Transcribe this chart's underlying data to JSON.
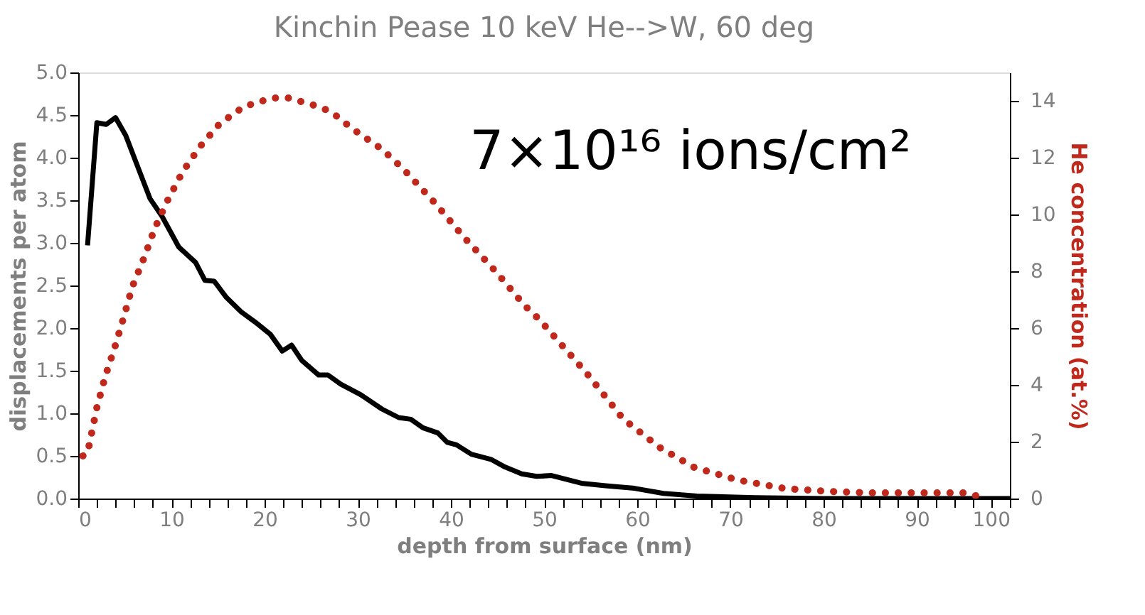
{
  "chart_data": {
    "type": "line",
    "title": "Kinchin Pease 10 keV He-->W, 60 deg",
    "xlabel": "depth from surface (nm)",
    "ylabel": "displacements per atom",
    "y2label": "He concentration (at.%)",
    "annotations": [
      "7×10¹⁶ ions/cm²"
    ],
    "xlim": [
      0,
      100
    ],
    "xticks": [
      0,
      {
        "value": 2,
        "label": null
      },
      {
        "value": 4,
        "label": null
      },
      {
        "value": 6,
        "label": null
      },
      {
        "value": 8,
        "label": null
      },
      10,
      {
        "value": 12,
        "label": null
      },
      {
        "value": 14,
        "label": null
      },
      {
        "value": 16,
        "label": null
      },
      {
        "value": 18,
        "label": null
      },
      20,
      {
        "value": 22,
        "label": null
      },
      {
        "value": 24,
        "label": null
      },
      {
        "value": 26,
        "label": null
      },
      {
        "value": 28,
        "label": null
      },
      30,
      {
        "value": 32,
        "label": null
      },
      {
        "value": 34,
        "label": null
      },
      {
        "value": 36,
        "label": null
      },
      {
        "value": 38,
        "label": null
      },
      40,
      {
        "value": 42,
        "label": null
      },
      {
        "value": 44,
        "label": null
      },
      {
        "value": 46,
        "label": null
      },
      {
        "value": 48,
        "label": null
      },
      50,
      {
        "value": 52,
        "label": null
      },
      {
        "value": 54,
        "label": null
      },
      {
        "value": 56,
        "label": null
      },
      {
        "value": 58,
        "label": null
      },
      60,
      {
        "value": 62,
        "label": null
      },
      {
        "value": 64,
        "label": null
      },
      {
        "value": 66,
        "label": null
      },
      {
        "value": 68,
        "label": null
      },
      70,
      {
        "value": 72,
        "label": null
      },
      {
        "value": 74,
        "label": null
      },
      {
        "value": 76,
        "label": null
      },
      {
        "value": 78,
        "label": null
      },
      80,
      {
        "value": 82,
        "label": null
      },
      {
        "value": 84,
        "label": null
      },
      {
        "value": 86,
        "label": null
      },
      {
        "value": 88,
        "label": null
      },
      90,
      {
        "value": 92,
        "label": null
      },
      {
        "value": 94,
        "label": null
      },
      {
        "value": 96,
        "label": null
      },
      {
        "value": 98,
        "label": null
      },
      100
    ],
    "ylim": [
      0,
      5
    ],
    "yticks": [
      {
        "value": 0,
        "label": "0.0"
      },
      0.5,
      {
        "value": 1,
        "label": "1.0"
      },
      1.5,
      {
        "value": 2,
        "label": "2.0"
      },
      2.5,
      {
        "value": 3,
        "label": "3.0"
      },
      3.5,
      {
        "value": 4,
        "label": "4.0"
      },
      4.5,
      {
        "value": 5,
        "label": "5.0"
      }
    ],
    "y2lim": [
      0,
      15
    ],
    "y2ticks": [
      0,
      2,
      4,
      6,
      8,
      10,
      12,
      14
    ],
    "grid": false,
    "series": [
      {
        "color": "#000000",
        "line_style": "solid",
        "x": [
          1.0,
          2.0,
          3.0,
          4.0,
          5.1,
          6.4,
          7.7,
          9.0,
          10.8,
          12.6,
          13.6,
          14.6,
          15.9,
          17.5,
          19.0,
          20.6,
          21.9,
          22.9,
          24.0,
          25.8,
          26.8,
          28.2,
          30.3,
          32.6,
          34.4,
          35.7,
          37.0,
          38.6,
          39.6,
          40.6,
          42.2,
          44.3,
          45.8,
          47.6,
          49.2,
          50.8,
          54.0,
          56.6,
          59.7,
          62.8,
          66.4,
          72.6,
          80,
          90,
          100
        ],
        "values": [
          2.97,
          4.41,
          4.39,
          4.47,
          4.26,
          3.89,
          3.52,
          3.31,
          2.95,
          2.77,
          2.56,
          2.55,
          2.36,
          2.19,
          2.07,
          1.93,
          1.73,
          1.8,
          1.62,
          1.45,
          1.45,
          1.34,
          1.22,
          1.05,
          0.95,
          0.93,
          0.83,
          0.77,
          0.66,
          0.63,
          0.52,
          0.46,
          0.37,
          0.29,
          0.26,
          0.27,
          0.18,
          0.15,
          0.12,
          0.06,
          0.03,
          0.01,
          0,
          0,
          0
        ]
      },
      {
        "color": "#c0281c",
        "line_style": "dotted",
        "axis": "y2",
        "x": [
          0.5,
          1.0,
          2.0,
          2.9,
          3.9,
          4.9,
          5.8,
          7.1,
          8.2,
          9.6,
          11.2,
          13.1,
          15.2,
          17.8,
          20.8,
          22.6,
          25.8,
          27.2,
          29.5,
          32.6,
          34.9,
          38.3,
          41.4,
          44.8,
          47.9,
          49.5,
          54.6,
          58.5,
          62.4,
          66.1,
          70.8,
          75.9,
          80.6,
          85,
          90,
          95,
          97
        ],
        "values": [
          1.5,
          1.6,
          3.2,
          4.3,
          5.3,
          6.4,
          7.45,
          8.5,
          9.5,
          10.5,
          11.5,
          12.4,
          13.2,
          13.8,
          14.1,
          14.1,
          13.8,
          13.6,
          13.0,
          12.3,
          11.6,
          10.4,
          9.2,
          8.0,
          6.8,
          6.3,
          4.4,
          2.8,
          1.8,
          1.1,
          0.65,
          0.35,
          0.25,
          0.2,
          0.2,
          0.2,
          0.05
        ]
      }
    ]
  }
}
